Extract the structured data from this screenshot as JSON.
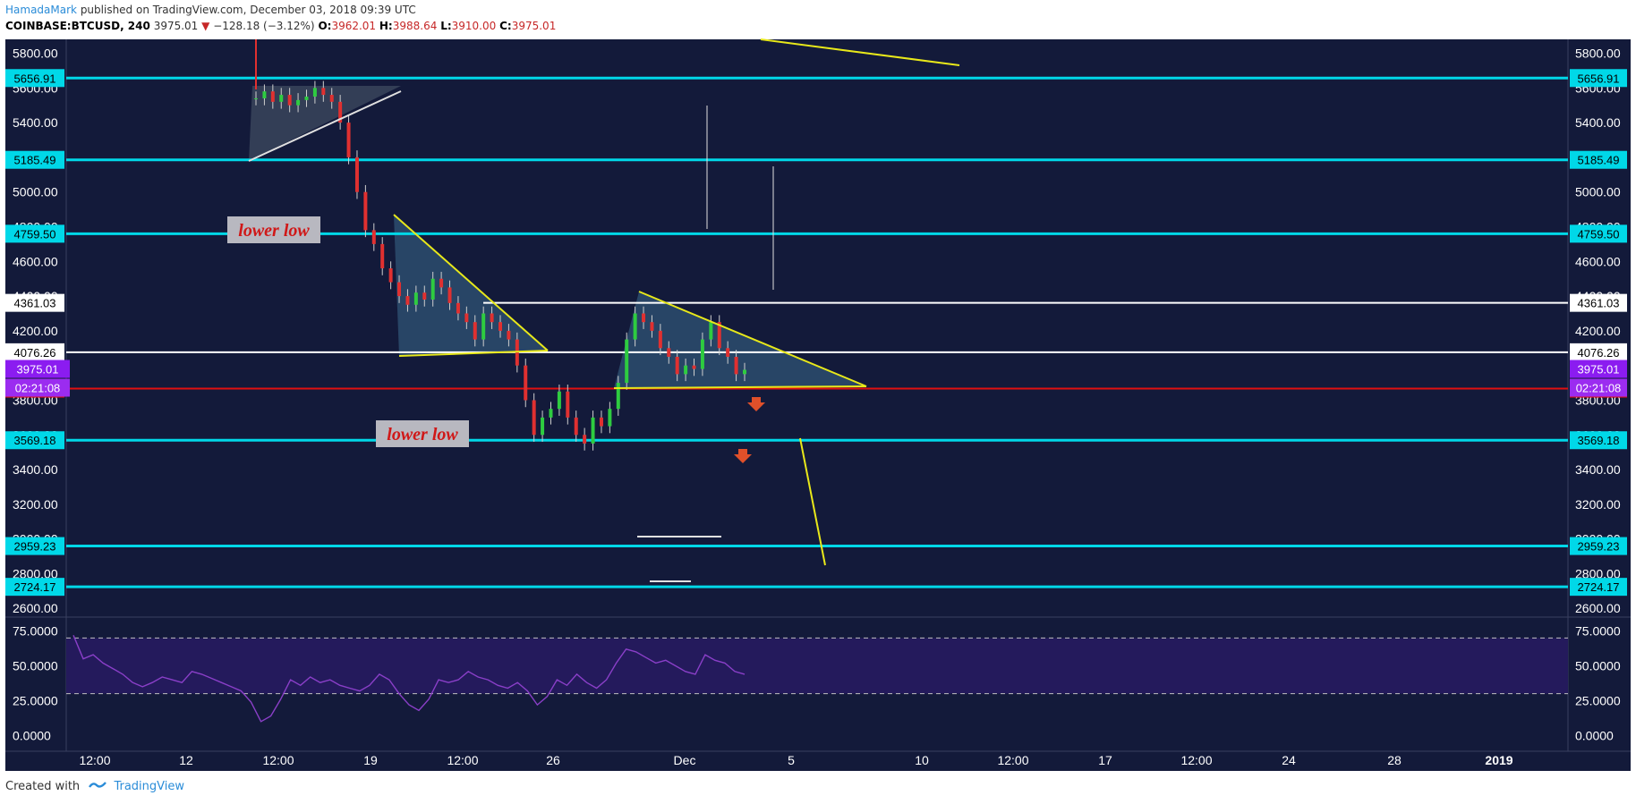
{
  "header": {
    "author": "HamadaMark",
    "publish_text": "published on TradingView.com, December 03, 2018 09:39 UTC",
    "symbol": "COINBASE:BTCUSD, 240",
    "last": "3975.01",
    "change_arrow": "▼",
    "change": "−128.18 (−3.12%)",
    "open_label": "O:",
    "open": "3962.01",
    "high_label": "H:",
    "high": "3988.64",
    "low_label": "L:",
    "low": "3910.00",
    "close_label": "C:",
    "close": "3975.01"
  },
  "footer": {
    "created_with": "Created with",
    "brand": "TradingView"
  },
  "colors": {
    "background": "#131a3a",
    "cyan_level": "#00d8e8",
    "white_level": "#ffffff",
    "red_level": "#e01010",
    "trendline": "#e8e81a",
    "rsi_line": "#8a3fc8",
    "rsi_band": "#241a5c",
    "candle_up": "#2ecc40",
    "candle_down": "#e03030",
    "price_badge": "#8b1cf0",
    "countdown_badge": "#9b2cf0"
  },
  "chart_data": {
    "type": "candlestick",
    "ylim": [
      2560,
      5880
    ],
    "y_ticks": [
      "5800.00",
      "5600.00",
      "5400.00",
      "5200.00",
      "5000.00",
      "4800.00",
      "4600.00",
      "4400.00",
      "4200.00",
      "4000.00",
      "3800.00",
      "3600.00",
      "3400.00",
      "3200.00",
      "3000.00",
      "2800.00",
      "2600.00"
    ],
    "x_ticks": [
      "12:00",
      "12",
      "12:00",
      "19",
      "12:00",
      "26",
      "Dec",
      "5",
      "10",
      "12:00",
      "17",
      "12:00",
      "24",
      "28",
      "2019"
    ],
    "levels": [
      {
        "label": "5656.91",
        "value": 5656.91,
        "style": "cyan"
      },
      {
        "label": "5185.49",
        "value": 5185.49,
        "style": "cyan"
      },
      {
        "label": "4759.50",
        "value": 4759.5,
        "style": "cyan"
      },
      {
        "label": "4361.03",
        "value": 4361.03,
        "style": "white"
      },
      {
        "label": "4076.26",
        "value": 4076.26,
        "style": "white"
      },
      {
        "label": "3866.59",
        "value": 3866.59,
        "style": "red"
      },
      {
        "label": "3569.18",
        "value": 3569.18,
        "style": "cyan"
      },
      {
        "label": "2959.23",
        "value": 2959.23,
        "style": "cyan"
      },
      {
        "label": "2724.17",
        "value": 2724.17,
        "style": "cyan"
      }
    ],
    "current_price": {
      "label": "3975.01",
      "value": 3975.01
    },
    "countdown": "02:21:08",
    "annotations": [
      "lower low",
      "lower low"
    ],
    "close_path": [
      [
        0,
        5540
      ],
      [
        2,
        5580
      ],
      [
        4,
        5520
      ],
      [
        6,
        5560
      ],
      [
        8,
        5500
      ],
      [
        10,
        5530
      ],
      [
        12,
        5550
      ],
      [
        14,
        5600
      ],
      [
        16,
        5560
      ],
      [
        18,
        5520
      ],
      [
        19,
        5400
      ],
      [
        20,
        5200
      ],
      [
        21,
        5000
      ],
      [
        22,
        4780
      ],
      [
        23,
        4700
      ],
      [
        24,
        4560
      ],
      [
        25,
        4480
      ],
      [
        26,
        4400
      ],
      [
        27,
        4350
      ],
      [
        28,
        4420
      ],
      [
        29,
        4380
      ],
      [
        30,
        4500
      ],
      [
        31,
        4450
      ],
      [
        32,
        4360
      ],
      [
        33,
        4300
      ],
      [
        34,
        4250
      ],
      [
        35,
        4150
      ],
      [
        36,
        4300
      ],
      [
        37,
        4250
      ],
      [
        38,
        4200
      ],
      [
        39,
        4150
      ],
      [
        40,
        4000
      ],
      [
        41,
        3800
      ],
      [
        42,
        3600
      ],
      [
        43,
        3700
      ],
      [
        44,
        3750
      ],
      [
        45,
        3850
      ],
      [
        46,
        3700
      ],
      [
        47,
        3600
      ],
      [
        48,
        3550
      ],
      [
        49,
        3700
      ],
      [
        50,
        3650
      ],
      [
        51,
        3750
      ],
      [
        52,
        3900
      ],
      [
        53,
        4150
      ],
      [
        54,
        4300
      ],
      [
        55,
        4250
      ],
      [
        56,
        4200
      ],
      [
        57,
        4100
      ],
      [
        58,
        4050
      ],
      [
        59,
        3950
      ],
      [
        60,
        4000
      ],
      [
        61,
        3980
      ],
      [
        62,
        4150
      ],
      [
        63,
        4250
      ],
      [
        64,
        4100
      ],
      [
        65,
        4050
      ],
      [
        66,
        3950
      ],
      [
        67,
        3975
      ]
    ],
    "rsi": {
      "ylim": [
        -10,
        85
      ],
      "y_ticks": [
        "75.0000",
        "50.0000",
        "25.0000",
        "0.0000"
      ],
      "bands": [
        70,
        30
      ],
      "values": [
        72,
        55,
        58,
        52,
        48,
        44,
        38,
        35,
        38,
        42,
        40,
        38,
        46,
        44,
        41,
        38,
        35,
        32,
        24,
        10,
        14,
        26,
        40,
        36,
        42,
        38,
        40,
        36,
        34,
        32,
        36,
        44,
        40,
        30,
        22,
        18,
        26,
        40,
        38,
        40,
        46,
        42,
        40,
        36,
        34,
        38,
        32,
        22,
        28,
        40,
        36,
        44,
        38,
        34,
        40,
        52,
        62,
        60,
        56,
        52,
        54,
        50,
        46,
        44,
        58,
        54,
        52,
        46,
        44
      ]
    }
  }
}
